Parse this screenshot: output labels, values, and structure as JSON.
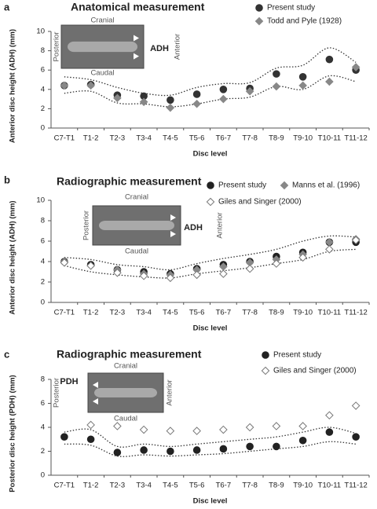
{
  "chart_data": [
    {
      "type": "scatter",
      "label": "a",
      "title": "Anatomical measurement",
      "ylabel": "Anterior disc height (ADH) (mm)",
      "xlabel": "Disc level",
      "categories": [
        "C7-T1",
        "T1-2",
        "T2-3",
        "T3-4",
        "T4-5",
        "T5-6",
        "T6-7",
        "T7-8",
        "T8-9",
        "T9-10",
        "T10-11",
        "T11-12"
      ],
      "ylim": [
        0,
        10
      ],
      "yticks": [
        0,
        2,
        4,
        6,
        8,
        10
      ],
      "series": [
        {
          "name": "Present study",
          "color": "#333333",
          "marker": "circle",
          "filled": true,
          "values": [
            4.4,
            4.5,
            3.4,
            3.3,
            2.9,
            3.5,
            4.0,
            4.1,
            5.6,
            5.3,
            7.1,
            6.0
          ]
        },
        {
          "name": "Todd and Pyle (1928)",
          "color": "#888888",
          "marker": "diamond",
          "filled": true,
          "values": [
            4.4,
            4.4,
            3.1,
            2.7,
            2.1,
            2.5,
            3.0,
            3.8,
            4.3,
            4.4,
            4.8,
            6.3
          ]
        }
      ],
      "bands": {
        "upper": [
          5.3,
          5.0,
          4.2,
          3.6,
          3.4,
          4.2,
          4.6,
          4.7,
          6.2,
          6.5,
          8.3,
          6.8
        ],
        "lower": [
          3.6,
          3.8,
          2.6,
          2.5,
          2.2,
          2.5,
          3.0,
          3.2,
          4.3,
          4.0,
          5.4,
          4.8
        ]
      },
      "inset": {
        "top": "Cranial",
        "bottom": "Caudal",
        "left": "Posterior",
        "right": "Anterior",
        "tag": "ADH"
      }
    },
    {
      "type": "scatter",
      "label": "b",
      "title": "Radiographic measurement",
      "ylabel": "Anterior disc height (ADH) (mm)",
      "xlabel": "Disc level",
      "categories": [
        "C7-T1",
        "T1-2",
        "T2-3",
        "T3-4",
        "T4-5",
        "T5-6",
        "T6-7",
        "T7-8",
        "T8-9",
        "T9-10",
        "T10-11",
        "T11-12"
      ],
      "ylim": [
        0,
        10
      ],
      "yticks": [
        0,
        2,
        4,
        6,
        8,
        10
      ],
      "series": [
        {
          "name": "Present study",
          "color": "#222222",
          "marker": "circle",
          "filled": true,
          "values": [
            4.0,
            3.7,
            3.2,
            3.0,
            2.8,
            3.3,
            3.7,
            4.0,
            4.5,
            4.9,
            5.9,
            5.9
          ]
        },
        {
          "name": "Manns et al. (1996)",
          "color": "#888888",
          "marker": "diamond",
          "filled": true,
          "values": [
            4.0,
            3.6,
            3.2,
            2.8,
            2.7,
            3.2,
            3.5,
            3.9,
            4.2,
            4.7,
            5.9,
            6.2
          ]
        },
        {
          "name": "Giles and Singer (2000)",
          "color": "#777777",
          "marker": "diamond",
          "filled": false,
          "values": [
            3.9,
            3.6,
            2.9,
            2.6,
            2.4,
            2.7,
            2.8,
            3.3,
            3.8,
            4.4,
            5.2,
            6.1
          ]
        }
      ],
      "bands": {
        "upper": [
          4.4,
          4.2,
          3.7,
          3.5,
          3.2,
          3.8,
          4.3,
          4.7,
          5.2,
          6.0,
          6.5,
          6.4
        ],
        "lower": [
          3.6,
          3.0,
          2.7,
          2.5,
          2.4,
          2.8,
          3.1,
          3.4,
          3.8,
          4.2,
          5.0,
          5.2
        ]
      },
      "inset": {
        "top": "Cranial",
        "bottom": "Caudal",
        "left": "Posterior",
        "right": "Anterior",
        "tag": "ADH"
      }
    },
    {
      "type": "scatter",
      "label": "c",
      "title": "Radiographic measurement",
      "ylabel": "Posterior disc height (PDH) (mm)",
      "xlabel": "Disc level",
      "categories": [
        "C7-T1",
        "T1-2",
        "T2-3",
        "T3-4",
        "T4-5",
        "T5-6",
        "T6-7",
        "T7-8",
        "T8-9",
        "T9-10",
        "T10-11",
        "T11-12"
      ],
      "ylim": [
        0,
        8
      ],
      "yticks": [
        0,
        2,
        4,
        6,
        8
      ],
      "series": [
        {
          "name": "Present study",
          "color": "#222222",
          "marker": "circle",
          "filled": true,
          "values": [
            3.2,
            3.0,
            1.9,
            2.1,
            2.0,
            2.1,
            2.2,
            2.4,
            2.4,
            2.9,
            3.6,
            3.2
          ]
        },
        {
          "name": "Giles and Singer (2000)",
          "color": "#777777",
          "marker": "diamond",
          "filled": false,
          "values": [
            null,
            4.2,
            4.1,
            3.8,
            3.7,
            3.7,
            3.8,
            4.0,
            4.1,
            4.1,
            5.0,
            5.8
          ]
        }
      ],
      "bands": {
        "upper": [
          3.6,
          3.8,
          2.4,
          2.6,
          2.4,
          2.6,
          2.8,
          3.0,
          3.2,
          3.6,
          4.0,
          3.5
        ],
        "lower": [
          2.6,
          2.5,
          1.6,
          1.7,
          1.6,
          1.7,
          1.8,
          2.0,
          2.2,
          2.4,
          2.8,
          2.6
        ]
      },
      "inset": {
        "top": "Cranial",
        "bottom": "Caudal",
        "left": "Posterior",
        "right": "Anterior",
        "tag": "PDH"
      }
    }
  ]
}
